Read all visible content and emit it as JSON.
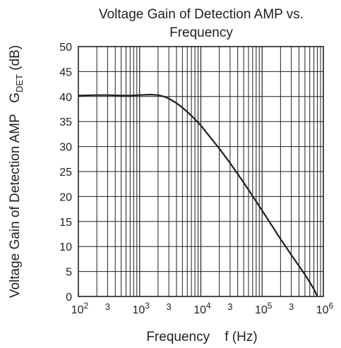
{
  "chart_data": {
    "type": "line",
    "title_lines": [
      "Voltage Gain of Detection AMP vs.",
      "Frequency"
    ],
    "xlabel": "Frequency    f (Hz)",
    "ylabel_main": "Voltage Gain of Detection AMP   G",
    "ylabel_sub": "DET",
    "ylabel_unit": " (dB)",
    "x_scale": "log",
    "xlim": [
      100,
      1000000
    ],
    "ylim": [
      0,
      50
    ],
    "y_ticks": [
      0,
      5,
      10,
      15,
      20,
      25,
      30,
      35,
      40,
      45,
      50
    ],
    "x_decade_labels": [
      {
        "value": 100,
        "base": "10",
        "exp": "2"
      },
      {
        "value": 1000,
        "base": "10",
        "exp": "3"
      },
      {
        "value": 10000,
        "base": "10",
        "exp": "4"
      },
      {
        "value": 100000,
        "base": "10",
        "exp": "5"
      },
      {
        "value": 1000000,
        "base": "10",
        "exp": "6"
      }
    ],
    "x_minor_labels": [
      {
        "value": 300,
        "label": "3"
      },
      {
        "value": 3000,
        "label": "3"
      },
      {
        "value": 30000,
        "label": "3"
      },
      {
        "value": 300000,
        "label": "3"
      }
    ],
    "grid": true,
    "series": [
      {
        "x": [
          100,
          200,
          300,
          500,
          700,
          1000,
          1500,
          2000,
          2500,
          3000,
          4000,
          5000,
          7000,
          10000,
          15000,
          20000,
          30000,
          50000,
          70000,
          100000,
          200000,
          300000,
          500000,
          700000,
          800000
        ],
        "y": [
          40.2,
          40.3,
          40.3,
          40.2,
          40.2,
          40.3,
          40.4,
          40.3,
          40.0,
          39.6,
          38.7,
          37.8,
          36.2,
          34.2,
          31.5,
          29.6,
          26.7,
          22.8,
          20.1,
          17.2,
          11.5,
          8.3,
          4.4,
          1.5,
          0.0
        ]
      }
    ],
    "colors": {
      "line": "#231f20",
      "grid": "#231f20",
      "text": "#231f20"
    }
  }
}
